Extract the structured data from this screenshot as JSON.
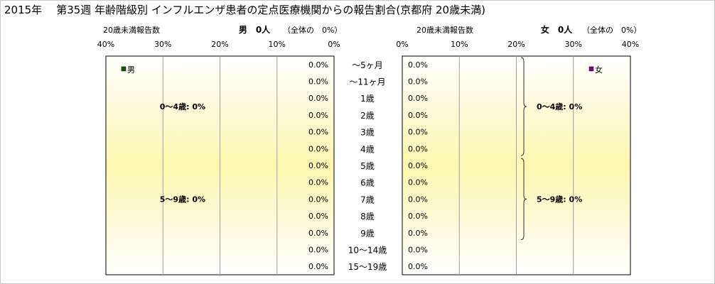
{
  "title": {
    "year": "2015年",
    "text": "第35週 年齢階級別 インフルエンザ患者の定点医療機関からの報告割合(京都府 20歳未満)"
  },
  "colors": {
    "male_marker": "#006400",
    "female_marker": "#8B008B",
    "plot_fill_edge": "#ffffff",
    "plot_fill_center": "#fbf7b0",
    "grid": "#a0a0a0"
  },
  "chart_data": [
    {
      "type": "bar",
      "panel": "male",
      "header_left": "20歳未満報告数",
      "header_main": "男　0人",
      "header_note": "（全体の　0%）",
      "legend": "男",
      "legend_placement": "top-left",
      "x_ticks": [
        "40%",
        "30%",
        "20%",
        "10%",
        "0%"
      ],
      "xlim": [
        0,
        40
      ],
      "direction": "reversed",
      "categories": [
        "～5ヶ月",
        "～11ヶ月",
        "1歳",
        "2歳",
        "3歳",
        "4歳",
        "5歳",
        "6歳",
        "7歳",
        "8歳",
        "9歳",
        "10～14歳",
        "15～19歳"
      ],
      "values": [
        0,
        0,
        0,
        0,
        0,
        0,
        0,
        0,
        0,
        0,
        0,
        0,
        0
      ],
      "value_labels": [
        "0.0%",
        "0.0%",
        "0.0%",
        "0.0%",
        "0.0%",
        "0.0%",
        "0.0%",
        "0.0%",
        "0.0%",
        "0.0%",
        "0.0%",
        "0.0%",
        "0.0%"
      ],
      "groups": [
        {
          "label": "0～4歳: 0%",
          "from": 0,
          "to": 5
        },
        {
          "label": "5～9歳: 0%",
          "from": 6,
          "to": 10
        }
      ]
    },
    {
      "type": "bar",
      "panel": "female",
      "header_left": "20歳未満報告数",
      "header_main": "女　0人",
      "header_note": "（全体の　0%）",
      "legend": "女",
      "legend_placement": "top-right",
      "x_ticks": [
        "0%",
        "10%",
        "20%",
        "30%",
        "40%"
      ],
      "xlim": [
        0,
        40
      ],
      "direction": "normal",
      "categories": [
        "～5ヶ月",
        "～11ヶ月",
        "1歳",
        "2歳",
        "3歳",
        "4歳",
        "5歳",
        "6歳",
        "7歳",
        "8歳",
        "9歳",
        "10～14歳",
        "15～19歳"
      ],
      "values": [
        0,
        0,
        0,
        0,
        0,
        0,
        0,
        0,
        0,
        0,
        0,
        0,
        0
      ],
      "value_labels": [
        "0.0%",
        "0.0%",
        "0.0%",
        "0.0%",
        "0.0%",
        "0.0%",
        "0.0%",
        "0.0%",
        "0.0%",
        "0.0%",
        "0.0%",
        "0.0%",
        "0.0%"
      ],
      "groups": [
        {
          "label": "0～4歳: 0%",
          "from": 0,
          "to": 5
        },
        {
          "label": "5～9歳: 0%",
          "from": 6,
          "to": 10
        }
      ]
    }
  ]
}
